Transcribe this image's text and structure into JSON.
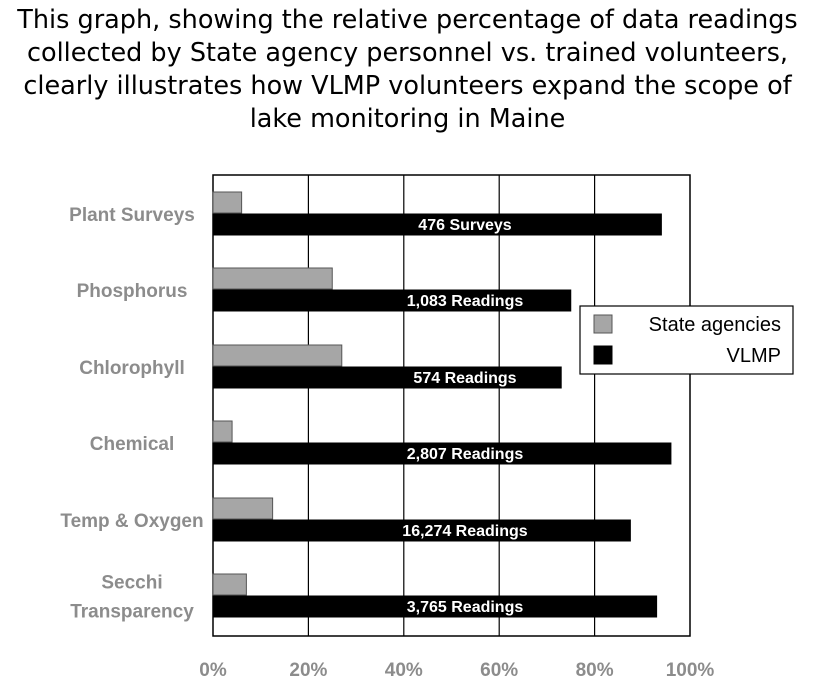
{
  "caption": {
    "lines": [
      "This graph, showing the relative percentage of data readings",
      "collected by State agency personnel vs. trained volunteers,",
      "clearly illustrates how VLMP volunteers expand the scope of",
      "lake monitoring in Maine"
    ]
  },
  "chart_data": {
    "type": "bar",
    "orientation": "horizontal",
    "categories": [
      [
        "Plant Surveys"
      ],
      [
        "Phosphorus"
      ],
      [
        "Chlorophyll"
      ],
      [
        "Chemical"
      ],
      [
        "Temp & Oxygen"
      ],
      [
        "Secchi",
        "Transparency"
      ]
    ],
    "series": [
      {
        "name": "State agencies",
        "color": "#a6a6a6",
        "values": [
          6,
          25,
          27,
          4,
          12.5,
          7
        ]
      },
      {
        "name": "VLMP",
        "color": "#000000",
        "values": [
          94,
          75,
          73,
          96,
          87.5,
          93
        ],
        "labels": [
          "476 Surveys",
          "1,083 Readings",
          "574 Readings",
          "2,807 Readings",
          "16,274 Readings",
          "3,765 Readings"
        ]
      }
    ],
    "xlim": [
      0,
      100
    ],
    "xticks": [
      "0%",
      "20%",
      "40%",
      "60%",
      "80%",
      "100%"
    ],
    "grid": true,
    "legend": "right"
  }
}
